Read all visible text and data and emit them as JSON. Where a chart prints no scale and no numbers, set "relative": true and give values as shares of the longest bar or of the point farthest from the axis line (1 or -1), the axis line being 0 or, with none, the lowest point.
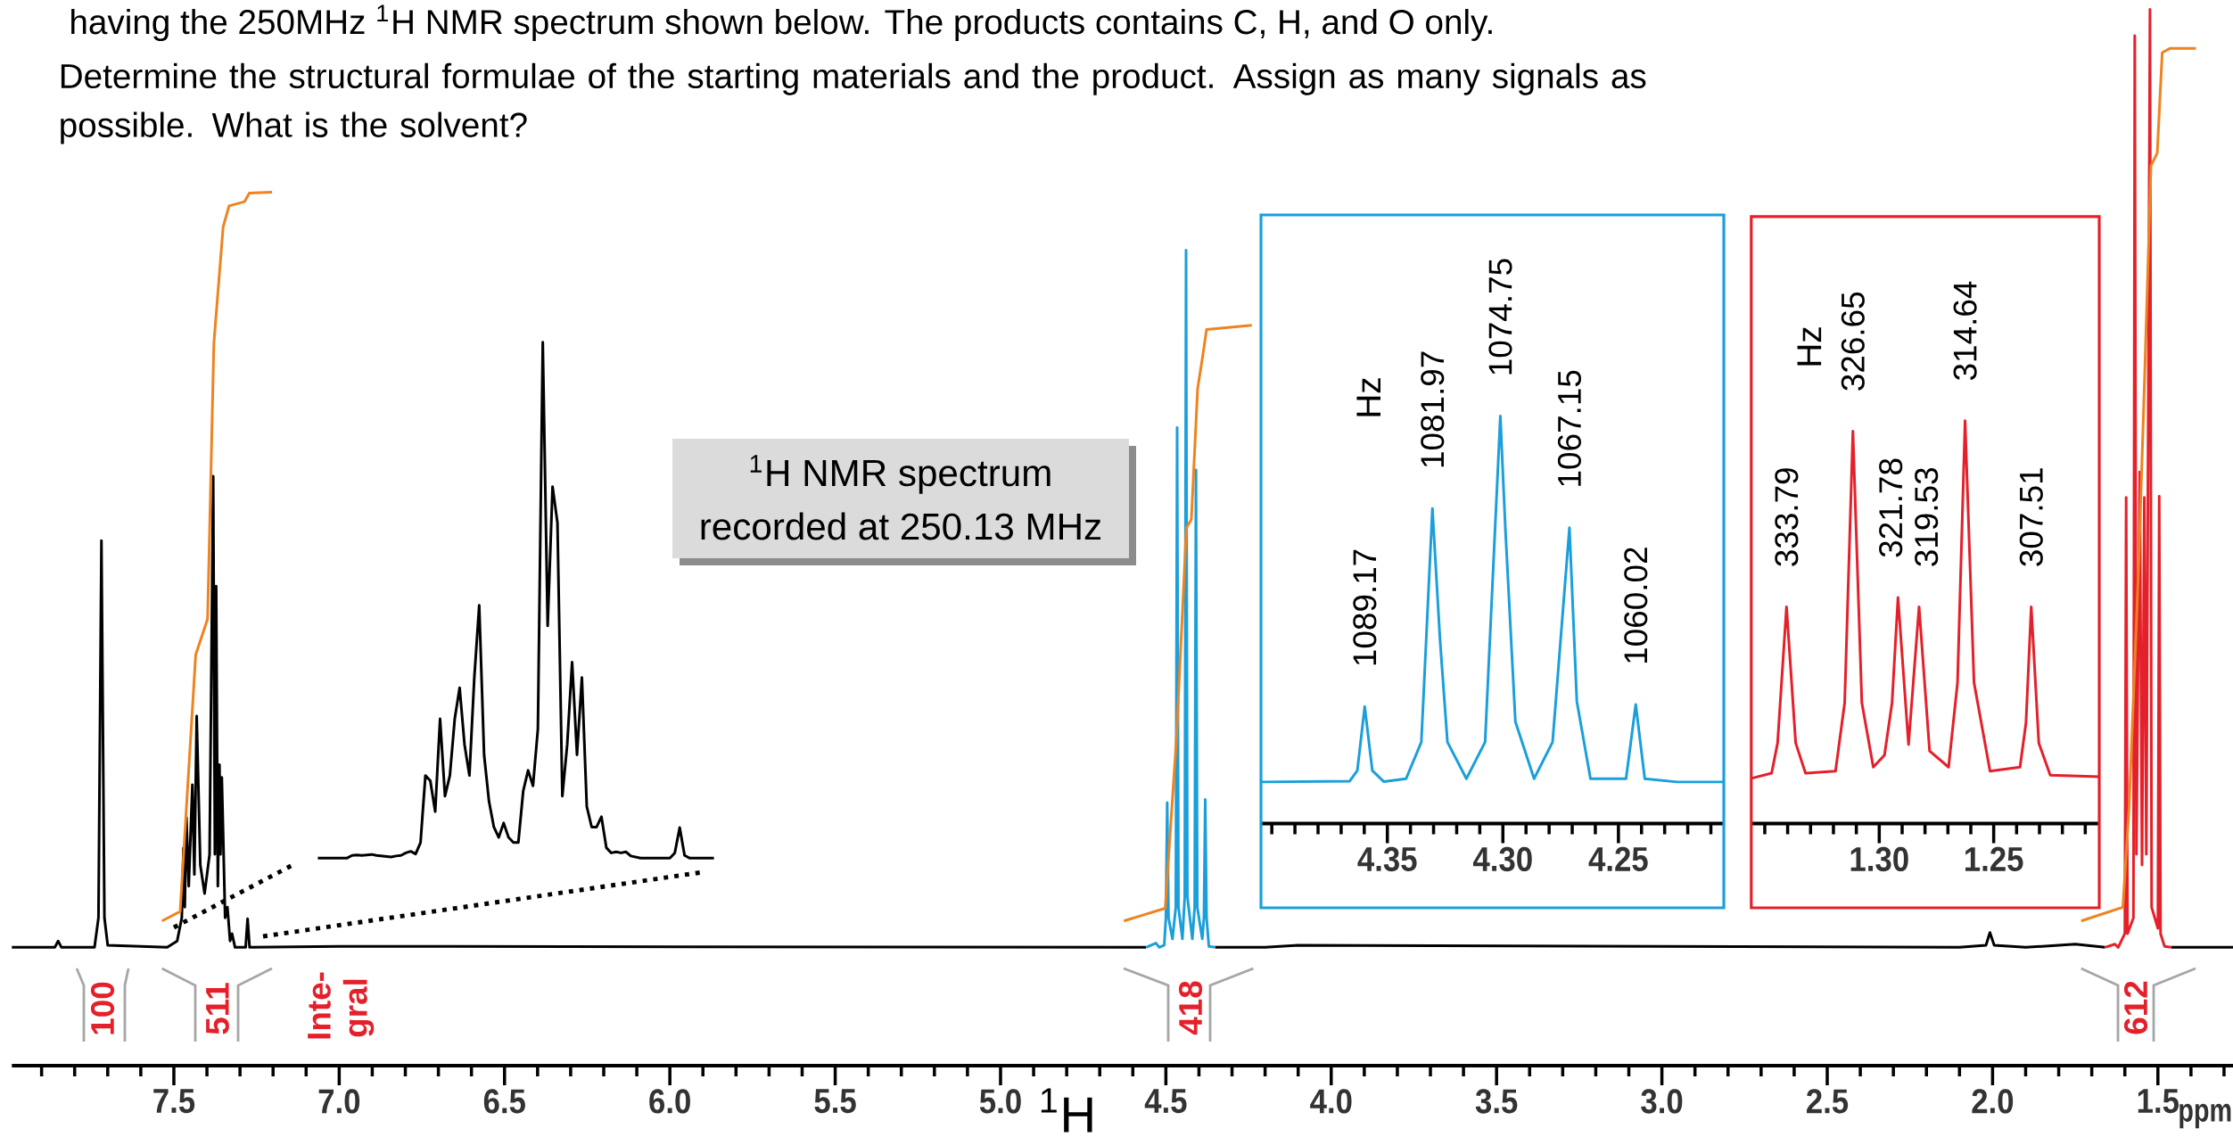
{
  "chart_data": [
    {
      "type": "line",
      "relative": true,
      "title": "having the 250MHz $^{1}$H NMR spectrum shown below. The products contains C, H, and O only.",
      "subtitle": "Determine the structural formulae of the starting materials and the product.  Assign as many signals as possible. What is the solvent?",
      "xlabel": "ppm",
      "xlim": [
        7.99,
        1.27
      ],
      "xticks": [
        {
          "value": 7.9,
          "label": null
        },
        {
          "value": 7.8,
          "label": null
        },
        {
          "value": 7.7,
          "label": null
        },
        {
          "value": 7.6,
          "label": null
        },
        7.5,
        {
          "value": 7.4,
          "label": null
        },
        {
          "value": 7.3,
          "label": null
        },
        {
          "value": 7.2,
          "label": null
        },
        {
          "value": 7.1,
          "label": null
        },
        {
          "value": 7,
          "label": "7.0"
        },
        {
          "value": 6.9,
          "label": null
        },
        {
          "value": 6.8,
          "label": null
        },
        {
          "value": 6.7,
          "label": null
        },
        {
          "value": 6.6,
          "label": null
        },
        6.5,
        {
          "value": 6.4,
          "label": null
        },
        {
          "value": 6.3,
          "label": null
        },
        {
          "value": 6.2,
          "label": null
        },
        {
          "value": 6.1,
          "label": null
        },
        {
          "value": 6,
          "label": "6.0"
        },
        {
          "value": 5.9,
          "label": null
        },
        {
          "value": 5.8,
          "label": null
        },
        {
          "value": 5.7,
          "label": null
        },
        {
          "value": 5.6,
          "label": null
        },
        5.5,
        {
          "value": 5.4,
          "label": null
        },
        {
          "value": 5.3,
          "label": null
        },
        {
          "value": 5.2,
          "label": null
        },
        {
          "value": 5.1,
          "label": null
        },
        {
          "value": 5,
          "label": "5.0"
        },
        {
          "value": 4.9,
          "label": null
        },
        {
          "value": 4.8,
          "label": null
        },
        {
          "value": 4.7,
          "label": null
        },
        {
          "value": 4.6,
          "label": null
        },
        4.5,
        {
          "value": 4.4,
          "label": null
        },
        {
          "value": 4.3,
          "label": null
        },
        {
          "value": 4.2,
          "label": null
        },
        {
          "value": 4.1,
          "label": null
        },
        {
          "value": 4,
          "label": "4.0"
        },
        {
          "value": 3.9,
          "label": null
        },
        {
          "value": 3.8,
          "label": null
        },
        {
          "value": 3.7,
          "label": null
        },
        {
          "value": 3.6,
          "label": null
        },
        3.5,
        {
          "value": 3.4,
          "label": null
        },
        {
          "value": 3.3,
          "label": null
        },
        {
          "value": 3.2,
          "label": null
        },
        {
          "value": 3.1,
          "label": null
        },
        {
          "value": 3,
          "label": "3.0"
        },
        {
          "value": 2.9,
          "label": null
        },
        {
          "value": 2.8,
          "label": null
        },
        {
          "value": 2.7,
          "label": null
        },
        {
          "value": 2.6,
          "label": null
        },
        2.5,
        {
          "value": 2.4,
          "label": null
        },
        {
          "value": 2.3,
          "label": null
        },
        {
          "value": 2.2,
          "label": null
        },
        {
          "value": 2.1,
          "label": null
        },
        {
          "value": 2,
          "label": "2.0"
        },
        {
          "value": 1.9,
          "label": null
        },
        {
          "value": 1.8,
          "label": null
        },
        {
          "value": 1.7,
          "label": null
        },
        {
          "value": 1.6,
          "label": null
        },
        1.5,
        {
          "value": 1.4,
          "label": null
        },
        {
          "value": 1.3,
          "label": null
        }
      ],
      "series": [
        {
          "color": "#000000",
          "x": [
            7.99,
            7.86,
            7.85,
            7.84,
            7.74,
            7.728,
            7.719,
            7.71,
            7.7,
            7.52,
            7.49,
            7.476,
            7.471,
            7.467,
            7.462,
            7.455,
            7.444,
            7.438,
            7.431,
            7.42,
            7.407,
            7.392,
            7.381,
            7.376,
            7.372,
            7.367,
            7.362,
            7.359,
            7.355,
            7.345,
            7.338,
            7.33,
            7.324,
            7.315,
            7.283,
            7.277,
            7.271,
            7.0,
            4.6,
            4.56,
            4.45,
            4.35,
            4.2,
            4.1,
            2.1,
            2.02,
            2.008,
            1.995,
            1.9,
            1.75,
            1.66,
            1.55,
            1.46,
            1.273
          ],
          "values": [
            0.112,
            0.112,
            0.118,
            0.112,
            0.112,
            0.14,
            0.497,
            0.14,
            0.114,
            0.112,
            0.118,
            0.14,
            0.206,
            0.15,
            0.235,
            0.17,
            0.266,
            0.181,
            0.331,
            0.19,
            0.163,
            0.2,
            0.558,
            0.2,
            0.454,
            0.17,
            0.285,
            0.2,
            0.273,
            0.14,
            0.15,
            0.118,
            0.125,
            0.112,
            0.112,
            0.139,
            0.112,
            0.113,
            0.112,
            0.112,
            null,
            0.112,
            0.112,
            0.114,
            0.112,
            0.114,
            0.126,
            0.114,
            0.112,
            0.115,
            0.112,
            null,
            0.112,
            0.112
          ]
        },
        {
          "color": "#1a9fdb",
          "x": [
            4.56,
            4.53,
            4.52,
            4.505,
            4.5,
            4.496,
            4.492,
            4.48,
            4.47,
            4.466,
            4.462,
            4.45,
            4.443,
            4.439,
            4.435,
            4.42,
            4.413,
            4.409,
            4.405,
            4.39,
            4.385,
            4.381,
            4.377,
            4.37,
            4.35
          ],
          "values": [
            0.112,
            0.116,
            0.112,
            0.114,
            0.14,
            0.249,
            0.14,
            0.12,
            0.15,
            0.604,
            0.15,
            0.12,
            0.16,
            0.772,
            0.16,
            0.12,
            0.15,
            0.564,
            0.15,
            0.12,
            0.14,
            0.252,
            0.14,
            0.113,
            0.112
          ]
        },
        {
          "color": "#e4202a",
          "x": [
            1.66,
            1.63,
            1.62,
            1.6,
            1.596,
            1.592,
            1.574,
            1.57,
            1.565,
            1.555,
            1.548,
            1.541,
            1.535,
            1.524,
            1.519,
            1.5,
            1.496,
            1.492,
            1.48,
            1.46
          ],
          "values": [
            0.112,
            0.115,
            0.112,
            0.125,
            0.538,
            0.125,
            0.14,
            0.975,
            0.2,
            0.562,
            0.19,
            0.538,
            0.2,
            1.0,
            0.15,
            0.13,
            0.539,
            0.125,
            0.113,
            0.112
          ]
        },
        {
          "color": "#ee8320",
          "x": [
            7.536,
            7.481,
            7.434,
            7.398,
            7.379,
            7.351,
            7.333,
            7.286,
            7.272,
            7.203
          ],
          "values": [
            0.137,
            0.146,
            0.389,
            0.423,
            0.684,
            0.794,
            0.814,
            0.818,
            0.826,
            0.827
          ]
        },
        {
          "color": "#ee8320",
          "x": [
            4.627,
            4.502,
            4.468,
            4.438,
            4.423,
            4.404,
            4.388,
            4.377,
            4.24
          ],
          "values": [
            0.137,
            0.149,
            0.31,
            0.509,
            0.517,
            0.641,
            0.673,
            0.697,
            0.701
          ]
        },
        {
          "color": "#ee8320",
          "x": [
            1.732,
            1.606,
            1.587,
            1.558,
            1.54,
            1.521,
            1.502,
            1.487,
            1.464,
            1.385
          ],
          "values": [
            0.137,
            0.15,
            0.245,
            0.476,
            0.653,
            0.852,
            0.864,
            0.959,
            0.963,
            0.963
          ]
        }
      ],
      "annotations": [
        "$^{1}$H NMR spectrum",
        "recorded at 250.13 MHz",
        "$^{1}$H",
        "100",
        "511",
        "Inte-",
        "gral",
        "418",
        "612"
      ]
    },
    {
      "type": "line",
      "relative": true,
      "color": "#000000",
      "categories": [
        null,
        null,
        null,
        null,
        null,
        null,
        null,
        null,
        null,
        null,
        null,
        null,
        null,
        null,
        null,
        null,
        null,
        null,
        null,
        null,
        null,
        null,
        null,
        null,
        null,
        null,
        null,
        null,
        null,
        null,
        null,
        null,
        null,
        null,
        null,
        null,
        null,
        null,
        null,
        null,
        null,
        null,
        null,
        null,
        null,
        null,
        null,
        null,
        null,
        null,
        null,
        null,
        null,
        null,
        null,
        null,
        null,
        null,
        null,
        null,
        null,
        null,
        null,
        null,
        null,
        null,
        null,
        null,
        null,
        null,
        null,
        null,
        null,
        null,
        null,
        null,
        null,
        null,
        null,
        null,
        null,
        null
      ],
      "values": [
        0,
        0,
        0,
        0,
        0,
        0,
        0,
        0.005,
        0.006,
        0.005,
        0.006,
        0.007,
        0.005,
        0.004,
        0.003,
        0.002,
        0.004,
        0.005,
        0.01,
        0.013,
        0.008,
        0.03,
        0.16,
        0.15,
        0.09,
        0.27,
        0.12,
        0.16,
        0.27,
        0.33,
        0.22,
        0.16,
        0.35,
        0.49,
        0.2,
        0.11,
        0.06,
        0.04,
        0.068,
        0.04,
        0.03,
        0.03,
        0.13,
        0.17,
        0.14,
        0.25,
        1.0,
        0.45,
        0.72,
        0.65,
        0.12,
        0.22,
        0.38,
        0.2,
        0.35,
        0.1,
        0.06,
        0.06,
        0.08,
        0.02,
        0.01,
        0.012,
        0.01,
        0.012,
        0.004,
        0.002,
        0,
        0,
        0,
        0,
        0,
        0,
        0,
        0.01,
        0.059,
        0.005,
        0,
        0,
        0,
        0,
        0,
        0
      ]
    },
    {
      "type": "line",
      "relative": true,
      "color": "#1a9fdb",
      "xlim": [
        4.4047,
        4.2044
      ],
      "xticks": [
        {
          "value": 4.4,
          "label": null
        },
        {
          "value": 4.39,
          "label": null
        },
        {
          "value": 4.38,
          "label": null
        },
        {
          "value": 4.37,
          "label": null
        },
        {
          "value": 4.36,
          "label": null
        },
        4.35,
        {
          "value": 4.34,
          "label": null
        },
        {
          "value": 4.33,
          "label": null
        },
        {
          "value": 4.32,
          "label": null
        },
        {
          "value": 4.31,
          "label": null
        },
        {
          "value": 4.3,
          "label": "4.30"
        },
        {
          "value": 4.29,
          "label": null
        },
        {
          "value": 4.28,
          "label": null
        },
        {
          "value": 4.27,
          "label": null
        },
        {
          "value": 4.26,
          "label": null
        },
        4.25,
        {
          "value": 4.24,
          "label": null
        },
        {
          "value": 4.23,
          "label": null
        },
        {
          "value": 4.22,
          "label": null
        },
        {
          "value": 4.21,
          "label": null
        }
      ],
      "x": [
        4.4047,
        4.3663,
        4.363,
        4.3598,
        4.3565,
        4.3516,
        4.3419,
        4.3353,
        4.3305,
        4.3272,
        4.324,
        4.3158,
        4.3077,
        4.3011,
        4.2989,
        4.2946,
        4.2865,
        4.2785,
        4.2712,
        4.268,
        4.2621,
        4.2467,
        4.2425,
        4.2386,
        4.2246,
        4.2044
      ],
      "values": [
        0.102,
        0.104,
        0.13,
        0.287,
        0.13,
        0.103,
        0.11,
        0.2,
        0.773,
        0.45,
        0.2,
        0.11,
        0.2,
        1.0,
        0.72,
        0.25,
        0.11,
        0.2,
        0.726,
        0.3,
        0.11,
        0.11,
        0.292,
        0.11,
        0.102,
        0.102
      ],
      "annotations": [
        "Hz",
        {
          "text": "1089.17",
          "x": 4.3598,
          "y": 0.287
        },
        {
          "text": "1081.97",
          "x": 4.3305,
          "y": 0.773
        },
        {
          "text": "1074.75",
          "x": 4.3011,
          "y": 1.0
        },
        {
          "text": "1067.15",
          "x": 4.2712,
          "y": 0.726
        },
        {
          "text": "1060.02",
          "x": 4.2425,
          "y": 0.292
        }
      ]
    },
    {
      "type": "line",
      "relative": true,
      "color": "#e4202a",
      "xlim": [
        1.3559,
        1.2039
      ],
      "xticks": [
        {
          "value": 1.35,
          "label": null
        },
        {
          "value": 1.34,
          "label": null
        },
        {
          "value": 1.33,
          "label": null
        },
        {
          "value": 1.32,
          "label": null
        },
        {
          "value": 1.31,
          "label": null
        },
        {
          "value": 1.3,
          "label": "1.30"
        },
        {
          "value": 1.29,
          "label": null
        },
        {
          "value": 1.28,
          "label": null
        },
        {
          "value": 1.27,
          "label": null
        },
        {
          "value": 1.26,
          "label": null
        },
        1.25,
        {
          "value": 1.24,
          "label": null
        },
        {
          "value": 1.23,
          "label": null
        },
        {
          "value": 1.22,
          "label": null
        },
        {
          "value": 1.21,
          "label": null
        }
      ],
      "x": [
        1.3559,
        1.347,
        1.3444,
        1.3405,
        1.3365,
        1.3322,
        1.3191,
        1.3151,
        1.3115,
        1.3076,
        1.3026,
        1.2977,
        1.2944,
        1.2918,
        1.2872,
        1.2826,
        1.278,
        1.2697,
        1.2658,
        1.2625,
        1.2586,
        1.2516,
        1.2385,
        1.2359,
        1.2336,
        1.2303,
        1.2253,
        1.2039
      ],
      "values": [
        0.112,
        0.125,
        0.2,
        0.538,
        0.2,
        0.125,
        0.13,
        0.3,
        0.974,
        0.3,
        0.14,
        0.17,
        0.3,
        0.561,
        0.196,
        0.538,
        0.18,
        0.14,
        0.35,
        1.0,
        0.35,
        0.13,
        0.14,
        0.25,
        0.538,
        0.2,
        0.12,
        0.116
      ],
      "annotations": [
        "Hz",
        {
          "text": "333.79",
          "x": 1.3405,
          "y": 0.538
        },
        {
          "text": "326.65",
          "x": 1.3115,
          "y": 0.974
        },
        {
          "text": "321.78",
          "x": 1.2918,
          "y": 0.561
        },
        {
          "text": "319.53",
          "x": 1.2826,
          "y": 0.538
        },
        {
          "text": "314.64",
          "x": 1.2625,
          "y": 1.0
        },
        {
          "text": "307.51",
          "x": 1.2336,
          "y": 0.538
        }
      ]
    }
  ]
}
